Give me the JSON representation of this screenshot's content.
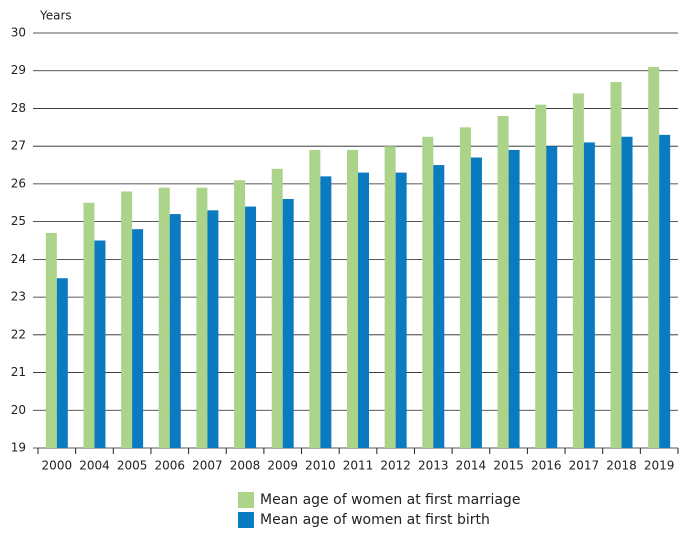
{
  "chart_data": {
    "type": "bar",
    "y_label": "Years",
    "categories": [
      "2000",
      "2004",
      "2005",
      "2006",
      "2007",
      "2008",
      "2009",
      "2010",
      "2011",
      "2012",
      "2013",
      "2014",
      "2015",
      "2016",
      "2017",
      "2018",
      "2019"
    ],
    "series": [
      {
        "name": "Mean age of women at first marriage",
        "color": "#abd48a",
        "values": [
          24.7,
          25.5,
          25.8,
          25.9,
          25.9,
          26.1,
          26.4,
          26.9,
          26.9,
          27.0,
          27.25,
          27.5,
          27.8,
          28.1,
          28.4,
          28.7,
          29.1
        ]
      },
      {
        "name": "Mean age of women at first birth",
        "color": "#0b7bc1",
        "values": [
          23.5,
          24.5,
          24.8,
          25.2,
          25.3,
          25.4,
          25.6,
          26.2,
          26.3,
          26.3,
          26.5,
          26.7,
          26.9,
          27.0,
          27.1,
          27.25,
          27.3
        ]
      }
    ],
    "ylim": [
      19,
      30
    ],
    "yticks": [
      19,
      20,
      21,
      22,
      23,
      24,
      25,
      26,
      27,
      28,
      29,
      30
    ],
    "grid": true,
    "legend": "bottom"
  }
}
